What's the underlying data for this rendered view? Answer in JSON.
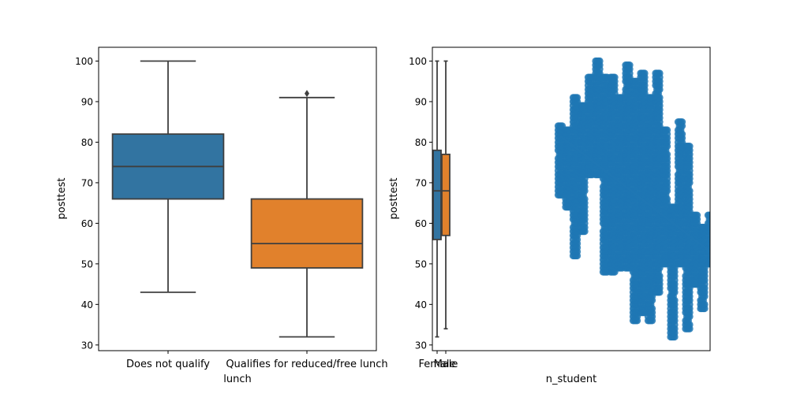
{
  "chart_data": [
    {
      "type": "box",
      "xlabel": "lunch",
      "ylabel": "posttest",
      "ylim": [
        28.6,
        103.4
      ],
      "yticks": [
        30,
        40,
        50,
        60,
        70,
        80,
        90,
        100
      ],
      "categories": [
        "Does not qualify",
        "Qualifies for reduced/free lunch"
      ],
      "boxes": [
        {
          "category": "Does not qualify",
          "color": "#3274a1",
          "whisker_low": 43,
          "q1": 66,
          "median": 74,
          "q3": 82,
          "whisker_high": 100,
          "outliers": []
        },
        {
          "category": "Qualifies for reduced/free lunch",
          "color": "#e1812c",
          "whisker_low": 32,
          "q1": 49,
          "median": 55,
          "q3": 66,
          "whisker_high": 91,
          "outliers": [
            92
          ]
        }
      ]
    },
    {
      "type": "box+scatter",
      "xlabel": "n_student",
      "ylabel": "posttest",
      "ylim": [
        28.6,
        103.4
      ],
      "yticks": [
        30,
        40,
        50,
        60,
        70,
        80,
        90,
        100
      ],
      "categories": [
        "Female",
        "Male"
      ],
      "boxes": [
        {
          "category": "Female",
          "color": "#3274a1",
          "whisker_low": 32,
          "q1": 56,
          "median": 68,
          "q3": 78,
          "whisker_high": 100
        },
        {
          "category": "Male",
          "color": "#e1812c",
          "whisker_low": 34,
          "q1": 57,
          "median": 68,
          "q3": 77,
          "whisker_high": 100
        }
      ],
      "scatter_color": "#1f77b4",
      "scatter_columns": [
        {
          "x": 14,
          "ylow": 67,
          "yhigh": 84
        },
        {
          "x": 15,
          "ylow": 64,
          "yhigh": 83
        },
        {
          "x": 16,
          "ylow": 52,
          "yhigh": 91
        },
        {
          "x": 17,
          "ylow": 58,
          "yhigh": 89
        },
        {
          "x": 18,
          "ylow": 72,
          "yhigh": 96
        },
        {
          "x": 19,
          "ylow": 72,
          "yhigh": 100
        },
        {
          "x": 20,
          "ylow": 48,
          "yhigh": 96
        },
        {
          "x": 21,
          "ylow": 48,
          "yhigh": 96
        },
        {
          "x": 22,
          "ylow": 49,
          "yhigh": 91
        },
        {
          "x": 23,
          "ylow": 49,
          "yhigh": 99
        },
        {
          "x": 24,
          "ylow": 36,
          "yhigh": 95
        },
        {
          "x": 25,
          "ylow": 38,
          "yhigh": 97
        },
        {
          "x": 26,
          "ylow": 36,
          "yhigh": 91
        },
        {
          "x": 27,
          "ylow": 43,
          "yhigh": 97
        },
        {
          "x": 28,
          "ylow": 50,
          "yhigh": 83
        },
        {
          "x": 29,
          "ylow": 32,
          "yhigh": 64
        },
        {
          "x": 30,
          "ylow": 50,
          "yhigh": 85
        },
        {
          "x": 31,
          "ylow": 34,
          "yhigh": 79
        },
        {
          "x": 32,
          "ylow": 45,
          "yhigh": 62
        },
        {
          "x": 33,
          "ylow": 39,
          "yhigh": 59
        },
        {
          "x": 34,
          "ylow": 50,
          "yhigh": 62
        }
      ],
      "regression_line": [
        [
          14,
          81.5
        ],
        [
          34,
          53
        ]
      ]
    }
  ]
}
